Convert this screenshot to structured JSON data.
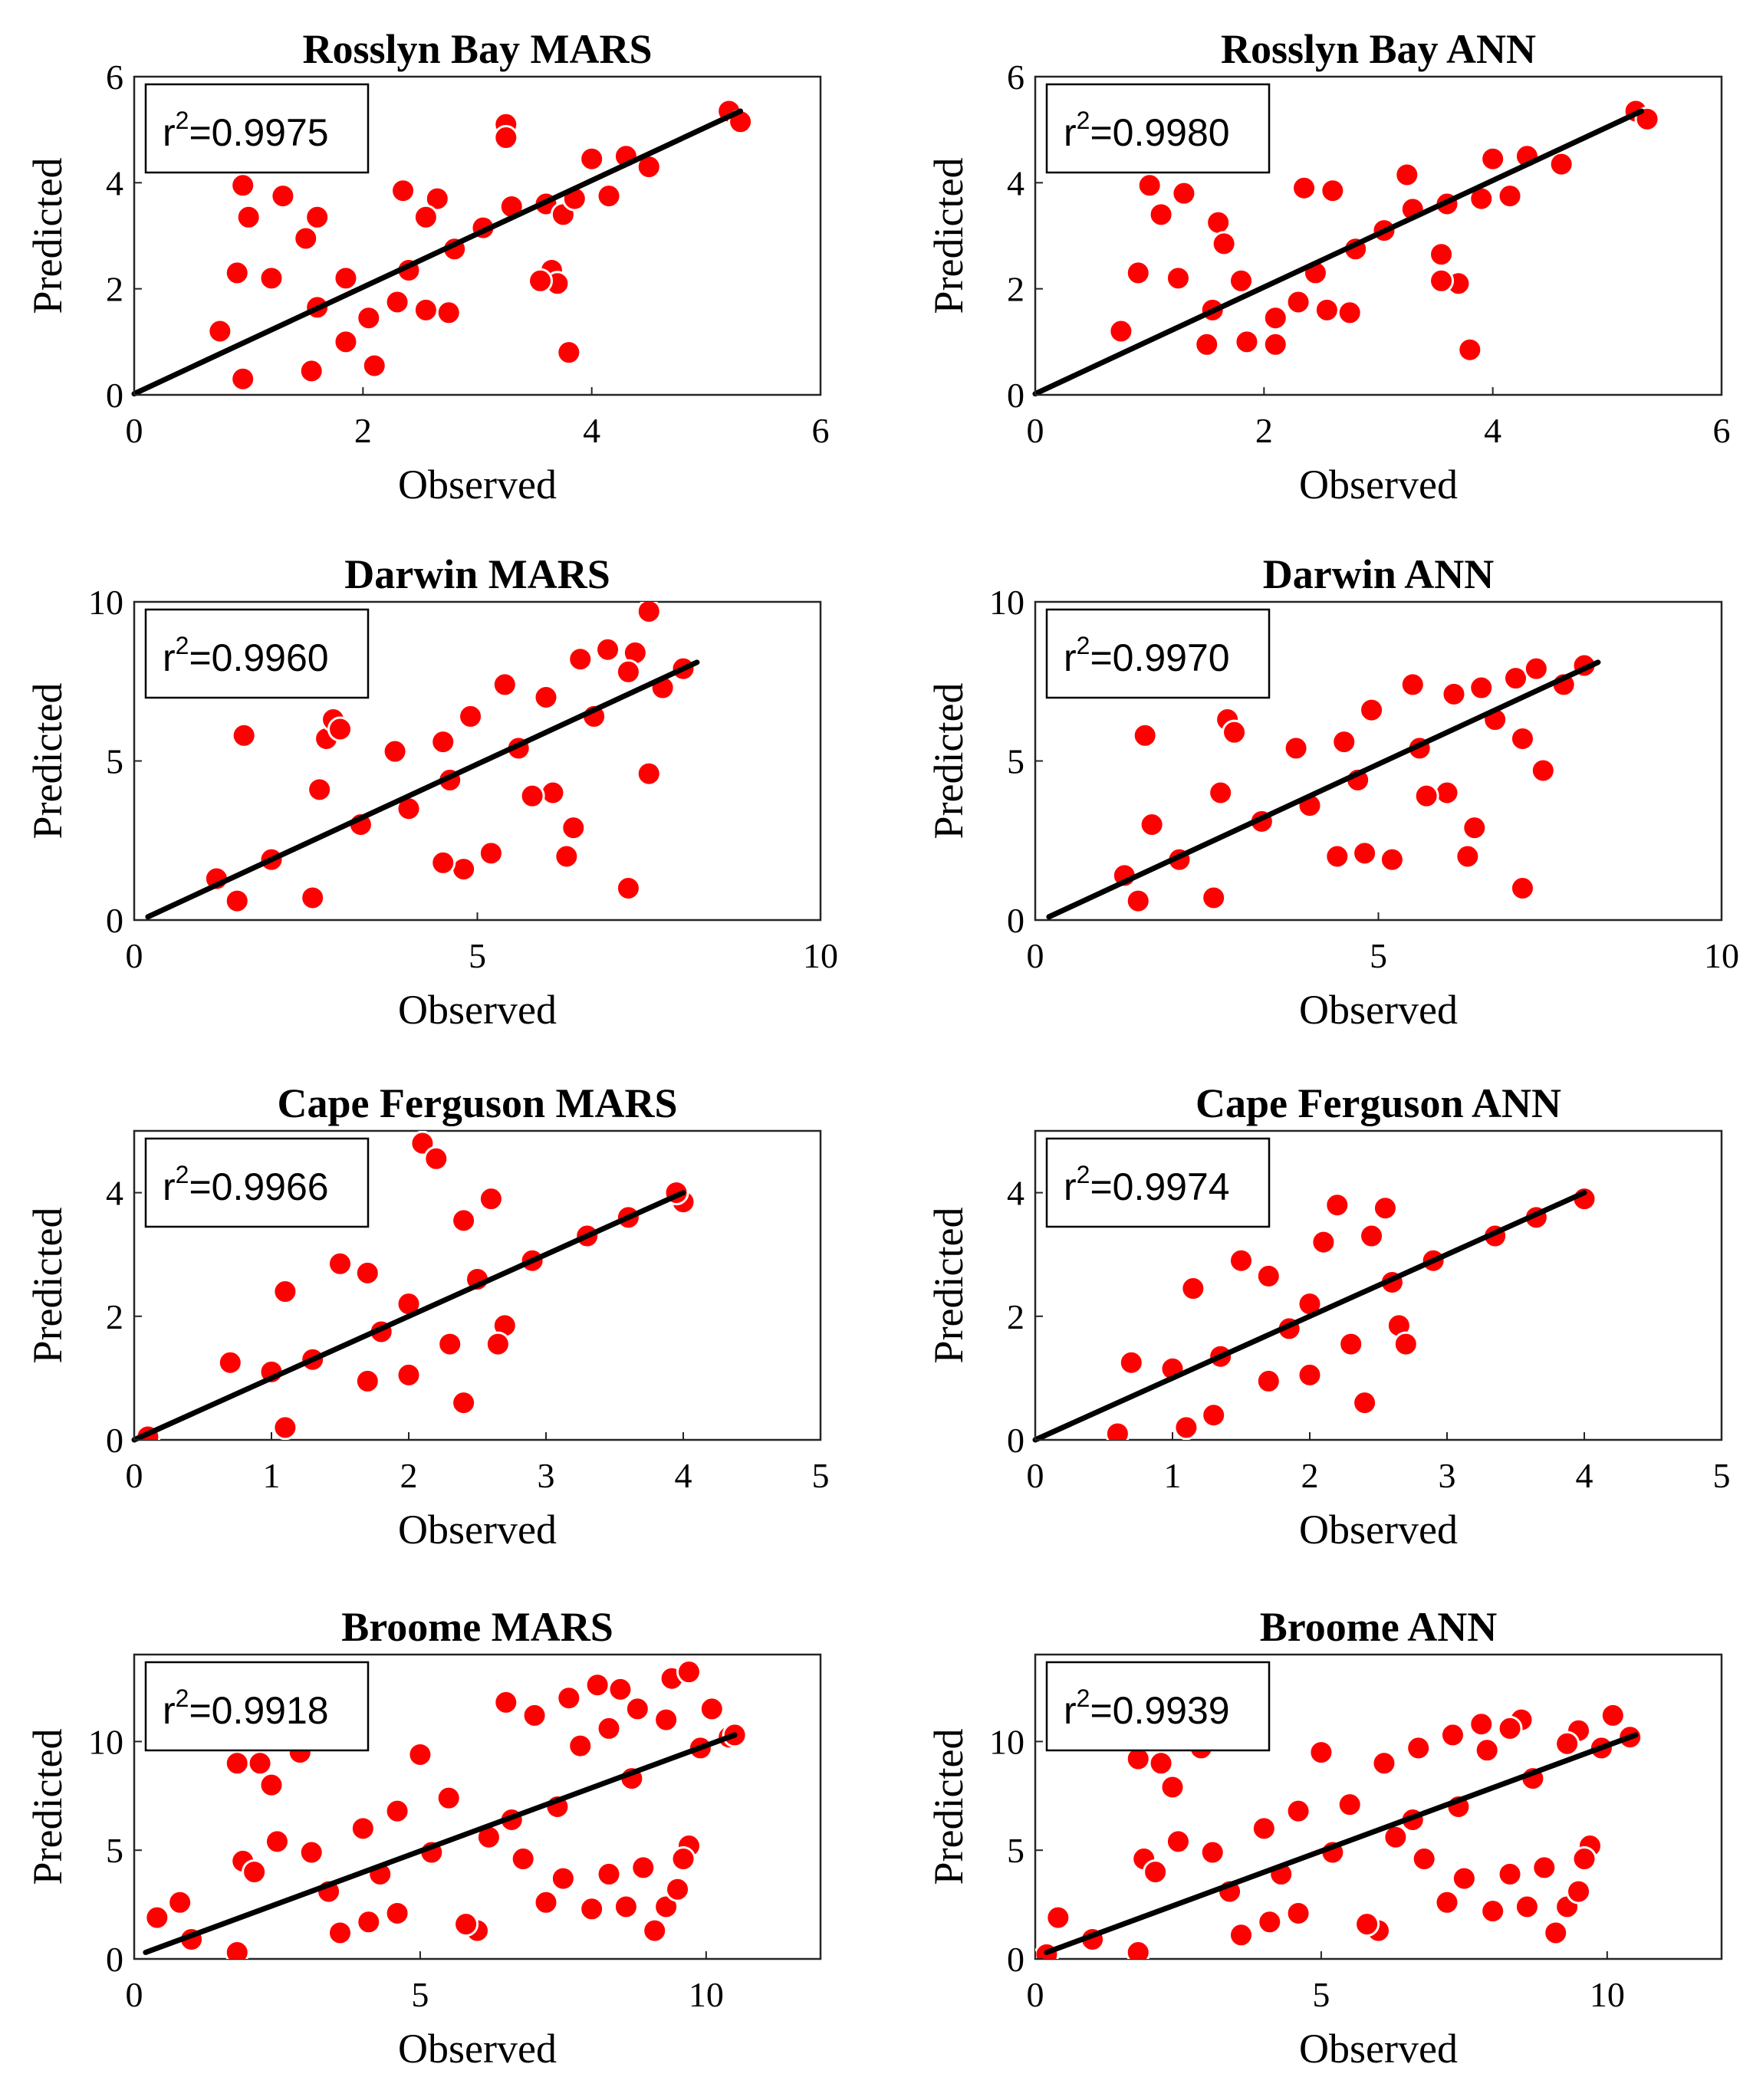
{
  "figure": {
    "x_axis_label": "Observed",
    "y_axis_label": "Predicted",
    "r2_prefix": "r",
    "r2_superscript": "2",
    "r2_equals": "=",
    "marker_color": "#ff0000",
    "marker_edge_color": "#ffffff",
    "fit_line_color": "#000000"
  },
  "chart_data": [
    {
      "type": "scatter",
      "title": "Rosslyn Bay MARS",
      "xlabel": "Observed",
      "ylabel": "Predicted",
      "xlim": [
        0,
        6
      ],
      "ylim": [
        0,
        6
      ],
      "xticks": [
        "0",
        "2",
        "4",
        "6"
      ],
      "yticks": [
        "0",
        "2",
        "4",
        "6"
      ],
      "r2": "0.9975",
      "fit_line": [
        [
          0,
          0.02
        ],
        [
          5.3,
          5.35
        ]
      ],
      "points": [
        [
          0.95,
          3.95
        ],
        [
          1.0,
          3.35
        ],
        [
          1.3,
          3.75
        ],
        [
          1.6,
          3.35
        ],
        [
          1.5,
          2.95
        ],
        [
          1.2,
          2.2
        ],
        [
          0.9,
          2.3
        ],
        [
          0.75,
          1.2
        ],
        [
          0.95,
          0.3
        ],
        [
          1.55,
          0.45
        ],
        [
          2.1,
          0.55
        ],
        [
          1.85,
          1.0
        ],
        [
          2.3,
          1.75
        ],
        [
          2.55,
          1.6
        ],
        [
          2.75,
          1.55
        ],
        [
          2.35,
          3.85
        ],
        [
          2.65,
          3.7
        ],
        [
          2.55,
          3.35
        ],
        [
          3.25,
          5.1
        ],
        [
          3.25,
          4.85
        ],
        [
          3.6,
          3.6
        ],
        [
          3.75,
          3.4
        ],
        [
          3.65,
          2.35
        ],
        [
          3.7,
          2.1
        ],
        [
          3.55,
          2.15
        ],
        [
          3.8,
          0.8
        ],
        [
          4.0,
          4.45
        ],
        [
          4.3,
          4.5
        ],
        [
          4.15,
          3.75
        ],
        [
          5.2,
          5.35
        ],
        [
          5.3,
          5.15
        ],
        [
          1.85,
          2.2
        ],
        [
          1.6,
          1.65
        ],
        [
          2.05,
          1.45
        ],
        [
          2.4,
          2.35
        ],
        [
          2.8,
          2.75
        ],
        [
          3.05,
          3.15
        ],
        [
          3.3,
          3.55
        ],
        [
          3.85,
          3.7
        ],
        [
          4.5,
          4.3
        ]
      ]
    },
    {
      "type": "scatter",
      "title": "Rosslyn Bay ANN",
      "xlabel": "Observed",
      "ylabel": "Predicted",
      "xlim": [
        0,
        6
      ],
      "ylim": [
        0,
        6
      ],
      "xticks": [
        "0",
        "2",
        "4",
        "6"
      ],
      "yticks": [
        "0",
        "2",
        "4",
        "6"
      ],
      "r2": "0.9980",
      "fit_line": [
        [
          0,
          0.02
        ],
        [
          5.3,
          5.35
        ]
      ],
      "points": [
        [
          1.0,
          3.95
        ],
        [
          1.1,
          3.4
        ],
        [
          1.3,
          3.8
        ],
        [
          1.6,
          3.25
        ],
        [
          1.65,
          2.85
        ],
        [
          1.25,
          2.2
        ],
        [
          0.9,
          2.3
        ],
        [
          0.75,
          1.2
        ],
        [
          1.5,
          0.95
        ],
        [
          2.1,
          0.95
        ],
        [
          1.85,
          1.0
        ],
        [
          2.3,
          1.75
        ],
        [
          2.55,
          1.6
        ],
        [
          2.75,
          1.55
        ],
        [
          2.35,
          3.9
        ],
        [
          2.6,
          3.85
        ],
        [
          3.25,
          4.15
        ],
        [
          3.6,
          3.6
        ],
        [
          3.55,
          2.65
        ],
        [
          3.7,
          2.1
        ],
        [
          3.55,
          2.15
        ],
        [
          3.8,
          0.85
        ],
        [
          4.0,
          4.45
        ],
        [
          4.3,
          4.5
        ],
        [
          4.15,
          3.75
        ],
        [
          5.25,
          5.35
        ],
        [
          5.35,
          5.2
        ],
        [
          1.8,
          2.15
        ],
        [
          1.55,
          1.6
        ],
        [
          2.1,
          1.45
        ],
        [
          2.45,
          2.3
        ],
        [
          2.8,
          2.75
        ],
        [
          3.05,
          3.1
        ],
        [
          3.3,
          3.5
        ],
        [
          3.9,
          3.7
        ],
        [
          4.6,
          4.35
        ]
      ]
    },
    {
      "type": "scatter",
      "title": "Darwin MARS",
      "xlabel": "Observed",
      "ylabel": "Predicted",
      "xlim": [
        0,
        10
      ],
      "ylim": [
        0,
        10
      ],
      "xticks": [
        "0",
        "5",
        "10"
      ],
      "yticks": [
        "0",
        "5",
        "10"
      ],
      "r2": "0.9960",
      "fit_line": [
        [
          0.2,
          0.1
        ],
        [
          8.2,
          8.1
        ]
      ],
      "points": [
        [
          1.6,
          5.8
        ],
        [
          2.8,
          5.7
        ],
        [
          2.9,
          6.3
        ],
        [
          3.0,
          6.0
        ],
        [
          2.7,
          4.1
        ],
        [
          3.8,
          5.3
        ],
        [
          4.5,
          5.6
        ],
        [
          4.9,
          6.4
        ],
        [
          5.4,
          7.4
        ],
        [
          6.0,
          7.0
        ],
        [
          6.5,
          8.2
        ],
        [
          6.9,
          8.5
        ],
        [
          7.3,
          8.4
        ],
        [
          7.5,
          9.7
        ],
        [
          7.2,
          7.8
        ],
        [
          7.2,
          1.0
        ],
        [
          7.5,
          4.6
        ],
        [
          6.3,
          2.0
        ],
        [
          6.4,
          2.9
        ],
        [
          6.1,
          4.0
        ],
        [
          5.8,
          3.9
        ],
        [
          5.2,
          2.1
        ],
        [
          4.8,
          1.6
        ],
        [
          4.5,
          1.8
        ],
        [
          2.6,
          0.7
        ],
        [
          1.5,
          0.6
        ],
        [
          1.2,
          1.3
        ],
        [
          2.0,
          1.9
        ],
        [
          3.3,
          3.0
        ],
        [
          4.0,
          3.5
        ],
        [
          4.6,
          4.4
        ],
        [
          5.6,
          5.4
        ],
        [
          6.7,
          6.4
        ],
        [
          7.7,
          7.3
        ],
        [
          8.0,
          7.9
        ]
      ]
    },
    {
      "type": "scatter",
      "title": "Darwin ANN",
      "xlabel": "Observed",
      "ylabel": "Predicted",
      "xlim": [
        0,
        10
      ],
      "ylim": [
        0,
        10
      ],
      "xticks": [
        "0",
        "5",
        "10"
      ],
      "yticks": [
        "0",
        "5",
        "10"
      ],
      "r2": "0.9970",
      "fit_line": [
        [
          0.2,
          0.1
        ],
        [
          8.2,
          8.1
        ]
      ],
      "points": [
        [
          1.6,
          5.8
        ],
        [
          2.8,
          6.3
        ],
        [
          2.9,
          5.9
        ],
        [
          1.7,
          3.0
        ],
        [
          2.7,
          4.0
        ],
        [
          3.8,
          5.4
        ],
        [
          4.5,
          5.6
        ],
        [
          4.9,
          6.6
        ],
        [
          5.5,
          7.4
        ],
        [
          6.1,
          7.1
        ],
        [
          6.5,
          7.3
        ],
        [
          7.0,
          7.6
        ],
        [
          7.3,
          7.9
        ],
        [
          7.1,
          5.7
        ],
        [
          7.1,
          1.0
        ],
        [
          7.4,
          4.7
        ],
        [
          6.3,
          2.0
        ],
        [
          6.4,
          2.9
        ],
        [
          6.0,
          4.0
        ],
        [
          5.7,
          3.9
        ],
        [
          5.2,
          1.9
        ],
        [
          4.8,
          2.1
        ],
        [
          4.4,
          2.0
        ],
        [
          2.6,
          0.7
        ],
        [
          1.5,
          0.6
        ],
        [
          1.3,
          1.4
        ],
        [
          2.1,
          1.9
        ],
        [
          3.3,
          3.1
        ],
        [
          4.0,
          3.6
        ],
        [
          4.7,
          4.4
        ],
        [
          5.6,
          5.4
        ],
        [
          6.7,
          6.3
        ],
        [
          7.7,
          7.4
        ],
        [
          8.0,
          8.0
        ]
      ]
    },
    {
      "type": "scatter",
      "title": "Cape Ferguson MARS",
      "xlabel": "Observed",
      "ylabel": "Predicted",
      "xlim": [
        0,
        5
      ],
      "ylim": [
        0,
        5
      ],
      "xticks": [
        "0",
        "1",
        "2",
        "3",
        "4",
        "5"
      ],
      "yticks": [
        "0",
        "2",
        "4"
      ],
      "r2": "0.9966",
      "fit_line": [
        [
          0,
          0.0
        ],
        [
          4.0,
          4.0
        ]
      ],
      "points": [
        [
          2.1,
          4.8
        ],
        [
          2.2,
          4.55
        ],
        [
          2.6,
          3.9
        ],
        [
          2.4,
          3.55
        ],
        [
          1.5,
          2.85
        ],
        [
          1.7,
          2.7
        ],
        [
          1.1,
          2.4
        ],
        [
          2.0,
          2.2
        ],
        [
          2.5,
          2.6
        ],
        [
          2.7,
          1.85
        ],
        [
          2.65,
          1.55
        ],
        [
          2.3,
          1.55
        ],
        [
          2.0,
          1.05
        ],
        [
          1.7,
          0.95
        ],
        [
          1.1,
          0.2
        ],
        [
          2.4,
          0.6
        ],
        [
          0.7,
          1.25
        ],
        [
          1.0,
          1.1
        ],
        [
          1.3,
          1.3
        ],
        [
          1.8,
          1.75
        ],
        [
          2.9,
          2.9
        ],
        [
          3.3,
          3.3
        ],
        [
          3.6,
          3.6
        ],
        [
          4.0,
          3.85
        ],
        [
          3.95,
          4.0
        ],
        [
          0.1,
          0.05
        ]
      ]
    },
    {
      "type": "scatter",
      "title": "Cape Ferguson ANN",
      "xlabel": "Observed",
      "ylabel": "Predicted",
      "xlim": [
        0,
        5
      ],
      "ylim": [
        0,
        5
      ],
      "xticks": [
        "0",
        "1",
        "2",
        "3",
        "4",
        "5"
      ],
      "yticks": [
        "0",
        "2",
        "4"
      ],
      "r2": "0.9974",
      "fit_line": [
        [
          0,
          0.0
        ],
        [
          4.0,
          4.0
        ]
      ],
      "points": [
        [
          2.2,
          3.8
        ],
        [
          2.55,
          3.75
        ],
        [
          2.45,
          3.3
        ],
        [
          2.1,
          3.2
        ],
        [
          1.5,
          2.9
        ],
        [
          1.7,
          2.65
        ],
        [
          1.15,
          2.45
        ],
        [
          2.0,
          2.2
        ],
        [
          2.6,
          2.55
        ],
        [
          2.65,
          1.85
        ],
        [
          2.7,
          1.55
        ],
        [
          2.3,
          1.55
        ],
        [
          2.0,
          1.05
        ],
        [
          1.7,
          0.95
        ],
        [
          1.1,
          0.2
        ],
        [
          1.3,
          0.4
        ],
        [
          2.4,
          0.6
        ],
        [
          0.7,
          1.25
        ],
        [
          1.0,
          1.15
        ],
        [
          1.35,
          1.35
        ],
        [
          1.85,
          1.8
        ],
        [
          2.9,
          2.9
        ],
        [
          3.35,
          3.3
        ],
        [
          3.65,
          3.6
        ],
        [
          4.0,
          3.9
        ],
        [
          0.6,
          0.1
        ]
      ]
    },
    {
      "type": "scatter",
      "title": "Broome MARS",
      "xlabel": "Observed",
      "ylabel": "Predicted",
      "xlim": [
        0,
        12
      ],
      "ylim": [
        0,
        14
      ],
      "xticks": [
        "0",
        "5",
        "10"
      ],
      "yticks": [
        "0",
        "5",
        "10"
      ],
      "r2": "0.9918",
      "fit_line": [
        [
          0.2,
          0.3
        ],
        [
          10.5,
          10.3
        ]
      ],
      "points": [
        [
          1.8,
          9.0
        ],
        [
          2.2,
          9.0
        ],
        [
          2.9,
          9.5
        ],
        [
          2.4,
          8.0
        ],
        [
          5.0,
          9.4
        ],
        [
          6.5,
          11.8
        ],
        [
          7.0,
          11.2
        ],
        [
          7.6,
          12.0
        ],
        [
          8.1,
          12.6
        ],
        [
          8.5,
          12.4
        ],
        [
          8.8,
          11.5
        ],
        [
          9.4,
          12.9
        ],
        [
          9.7,
          13.2
        ],
        [
          10.1,
          11.5
        ],
        [
          9.3,
          11.0
        ],
        [
          8.3,
          10.6
        ],
        [
          7.8,
          9.8
        ],
        [
          6.0,
          1.3
        ],
        [
          5.8,
          1.6
        ],
        [
          7.2,
          2.6
        ],
        [
          8.0,
          2.3
        ],
        [
          8.6,
          2.4
        ],
        [
          9.1,
          1.3
        ],
        [
          9.3,
          2.4
        ],
        [
          9.5,
          3.2
        ],
        [
          9.7,
          5.2
        ],
        [
          9.6,
          4.6
        ],
        [
          8.9,
          4.2
        ],
        [
          8.3,
          3.9
        ],
        [
          7.5,
          3.7
        ],
        [
          6.8,
          4.6
        ],
        [
          3.6,
          1.2
        ],
        [
          4.1,
          1.7
        ],
        [
          4.6,
          2.1
        ],
        [
          1.8,
          0.3
        ],
        [
          1.0,
          0.9
        ],
        [
          0.8,
          2.6
        ],
        [
          0.4,
          1.9
        ],
        [
          2.5,
          5.4
        ],
        [
          1.9,
          4.5
        ],
        [
          2.1,
          4.0
        ],
        [
          3.1,
          4.9
        ],
        [
          4.0,
          6.0
        ],
        [
          4.6,
          6.8
        ],
        [
          5.5,
          7.4
        ],
        [
          6.2,
          5.6
        ],
        [
          3.4,
          3.1
        ],
        [
          4.3,
          3.9
        ],
        [
          5.2,
          4.9
        ],
        [
          6.6,
          6.4
        ],
        [
          7.4,
          7.0
        ],
        [
          8.7,
          8.3
        ],
        [
          9.9,
          9.7
        ],
        [
          10.4,
          10.2
        ],
        [
          10.5,
          10.3
        ]
      ]
    },
    {
      "type": "scatter",
      "title": "Broome ANN",
      "xlabel": "Observed",
      "ylabel": "Predicted",
      "xlim": [
        0,
        12
      ],
      "ylim": [
        0,
        14
      ],
      "xticks": [
        "0",
        "5",
        "10"
      ],
      "yticks": [
        "0",
        "5",
        "10"
      ],
      "r2": "0.9939",
      "fit_line": [
        [
          0.2,
          0.3
        ],
        [
          10.5,
          10.3
        ]
      ],
      "points": [
        [
          1.8,
          9.2
        ],
        [
          2.2,
          9.0
        ],
        [
          2.9,
          9.7
        ],
        [
          2.4,
          7.9
        ],
        [
          5.0,
          9.5
        ],
        [
          6.1,
          9.0
        ],
        [
          6.7,
          9.7
        ],
        [
          7.3,
          10.3
        ],
        [
          7.8,
          10.8
        ],
        [
          8.5,
          11.0
        ],
        [
          8.3,
          10.6
        ],
        [
          9.5,
          10.5
        ],
        [
          10.1,
          11.2
        ],
        [
          9.3,
          9.9
        ],
        [
          7.9,
          9.6
        ],
        [
          6.0,
          1.3
        ],
        [
          5.8,
          1.6
        ],
        [
          7.2,
          2.6
        ],
        [
          8.0,
          2.2
        ],
        [
          8.6,
          2.4
        ],
        [
          9.1,
          1.2
        ],
        [
          9.3,
          2.4
        ],
        [
          9.5,
          3.1
        ],
        [
          9.7,
          5.2
        ],
        [
          9.6,
          4.6
        ],
        [
          8.9,
          4.2
        ],
        [
          8.3,
          3.9
        ],
        [
          7.5,
          3.7
        ],
        [
          6.8,
          4.6
        ],
        [
          3.6,
          1.1
        ],
        [
          4.1,
          1.7
        ],
        [
          4.6,
          2.1
        ],
        [
          1.8,
          0.3
        ],
        [
          1.0,
          0.9
        ],
        [
          0.4,
          1.9
        ],
        [
          2.5,
          5.4
        ],
        [
          1.9,
          4.6
        ],
        [
          2.1,
          4.0
        ],
        [
          3.1,
          4.9
        ],
        [
          4.0,
          6.0
        ],
        [
          4.6,
          6.8
        ],
        [
          5.5,
          7.1
        ],
        [
          6.3,
          5.6
        ],
        [
          3.4,
          3.1
        ],
        [
          4.3,
          3.9
        ],
        [
          5.2,
          4.9
        ],
        [
          6.6,
          6.4
        ],
        [
          7.4,
          7.0
        ],
        [
          8.7,
          8.3
        ],
        [
          9.9,
          9.7
        ],
        [
          10.4,
          10.2
        ],
        [
          0.2,
          0.2
        ]
      ]
    }
  ]
}
